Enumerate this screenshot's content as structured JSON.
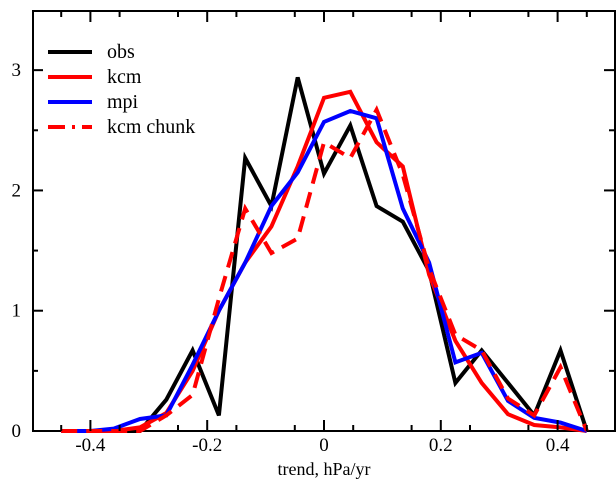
{
  "chart_data": {
    "type": "line",
    "xlabel": "trend, hPa/yr",
    "ylabel": "",
    "xlim": [
      -0.5,
      0.5
    ],
    "ylim": [
      0,
      3.5
    ],
    "xticks": [
      -0.4,
      -0.2,
      0,
      0.2,
      0.4
    ],
    "xtick_labels": [
      "-0.4",
      "-0.2",
      "0",
      "0.2",
      "0.4"
    ],
    "yticks": [
      0,
      1,
      2,
      3
    ],
    "ytick_labels": [
      "0",
      "1",
      "2",
      "3"
    ],
    "legend_position": "top-left",
    "grid": false,
    "series": [
      {
        "name": "obs",
        "color": "#000000",
        "dashed": false,
        "x": [
          -0.45,
          -0.4,
          -0.36,
          -0.315,
          -0.27,
          -0.225,
          -0.18,
          -0.135,
          -0.09,
          -0.045,
          0.0,
          0.045,
          0.09,
          0.135,
          0.18,
          0.225,
          0.27,
          0.315,
          0.36,
          0.405,
          0.45
        ],
        "values": [
          0,
          0,
          0,
          0,
          0.26,
          0.67,
          0.13,
          2.27,
          1.87,
          2.94,
          2.14,
          2.54,
          1.87,
          1.74,
          1.33,
          0.4,
          0.67,
          0.4,
          0.13,
          0.67,
          0
        ]
      },
      {
        "name": "kcm",
        "color": "#ff0000",
        "dashed": false,
        "x": [
          -0.45,
          -0.4,
          -0.36,
          -0.315,
          -0.27,
          -0.225,
          -0.18,
          -0.135,
          -0.09,
          -0.045,
          0.0,
          0.045,
          0.09,
          0.135,
          0.18,
          0.225,
          0.27,
          0.315,
          0.36,
          0.405,
          0.45
        ],
        "values": [
          0,
          0,
          0,
          0.03,
          0.15,
          0.5,
          1.0,
          1.4,
          1.7,
          2.2,
          2.77,
          2.82,
          2.4,
          2.2,
          1.3,
          0.75,
          0.4,
          0.14,
          0.05,
          0.03,
          0
        ]
      },
      {
        "name": "mpi",
        "color": "#0000ff",
        "dashed": false,
        "x": [
          -0.45,
          -0.4,
          -0.36,
          -0.315,
          -0.27,
          -0.225,
          -0.18,
          -0.135,
          -0.09,
          -0.045,
          0.0,
          0.045,
          0.09,
          0.135,
          0.18,
          0.225,
          0.27,
          0.315,
          0.36,
          0.405,
          0.45
        ],
        "values": [
          0,
          0,
          0.02,
          0.1,
          0.13,
          0.55,
          1.0,
          1.4,
          1.87,
          2.15,
          2.57,
          2.66,
          2.6,
          1.85,
          1.4,
          0.57,
          0.65,
          0.25,
          0.11,
          0.07,
          0
        ]
      },
      {
        "name": "kcm chunk",
        "color": "#ff0000",
        "dashed": true,
        "x": [
          -0.45,
          -0.4,
          -0.36,
          -0.315,
          -0.27,
          -0.225,
          -0.18,
          -0.135,
          -0.09,
          -0.045,
          0.0,
          0.045,
          0.09,
          0.135,
          0.18,
          0.225,
          0.27,
          0.315,
          0.36,
          0.405,
          0.45
        ],
        "values": [
          0,
          0,
          0,
          0,
          0.13,
          0.3,
          1.1,
          1.85,
          1.48,
          1.6,
          2.4,
          2.27,
          2.67,
          2.13,
          1.35,
          0.8,
          0.67,
          0.27,
          0.13,
          0.53,
          0
        ]
      }
    ]
  }
}
